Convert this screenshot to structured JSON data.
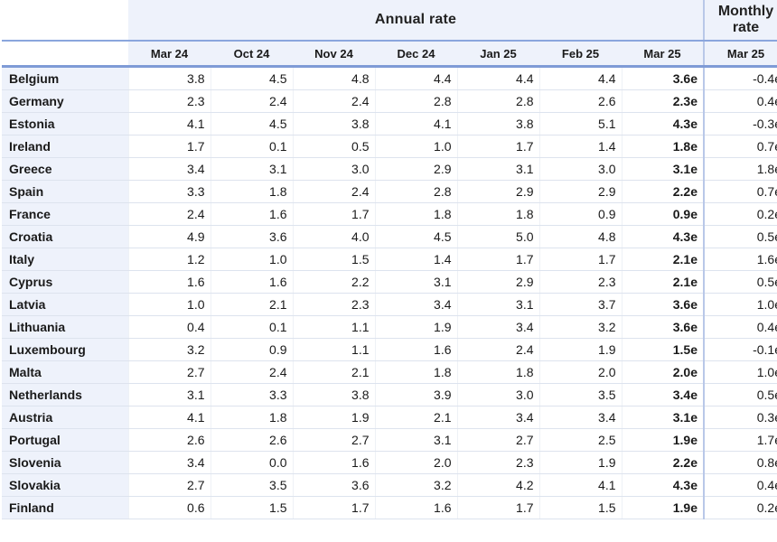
{
  "header": {
    "annual_label": "Annual rate",
    "monthly_label_line1": "Monthly",
    "monthly_label_line2": "rate"
  },
  "columns": [
    "Mar 24",
    "Oct 24",
    "Nov 24",
    "Dec 24",
    "Jan 25",
    "Feb 25",
    "Mar 25",
    "Mar 25"
  ],
  "rows": [
    {
      "country": "Belgium",
      "values": [
        "3.8",
        "4.5",
        "4.8",
        "4.4",
        "4.4",
        "4.4",
        "3.6e",
        "-0.4e"
      ]
    },
    {
      "country": "Germany",
      "values": [
        "2.3",
        "2.4",
        "2.4",
        "2.8",
        "2.8",
        "2.6",
        "2.3e",
        "0.4e"
      ]
    },
    {
      "country": "Estonia",
      "values": [
        "4.1",
        "4.5",
        "3.8",
        "4.1",
        "3.8",
        "5.1",
        "4.3e",
        "-0.3e"
      ]
    },
    {
      "country": "Ireland",
      "values": [
        "1.7",
        "0.1",
        "0.5",
        "1.0",
        "1.7",
        "1.4",
        "1.8e",
        "0.7e"
      ]
    },
    {
      "country": "Greece",
      "values": [
        "3.4",
        "3.1",
        "3.0",
        "2.9",
        "3.1",
        "3.0",
        "3.1e",
        "1.8e"
      ]
    },
    {
      "country": "Spain",
      "values": [
        "3.3",
        "1.8",
        "2.4",
        "2.8",
        "2.9",
        "2.9",
        "2.2e",
        "0.7e"
      ]
    },
    {
      "country": "France",
      "values": [
        "2.4",
        "1.6",
        "1.7",
        "1.8",
        "1.8",
        "0.9",
        "0.9e",
        "0.2e"
      ]
    },
    {
      "country": "Croatia",
      "values": [
        "4.9",
        "3.6",
        "4.0",
        "4.5",
        "5.0",
        "4.8",
        "4.3e",
        "0.5e"
      ]
    },
    {
      "country": "Italy",
      "values": [
        "1.2",
        "1.0",
        "1.5",
        "1.4",
        "1.7",
        "1.7",
        "2.1e",
        "1.6e"
      ]
    },
    {
      "country": "Cyprus",
      "values": [
        "1.6",
        "1.6",
        "2.2",
        "3.1",
        "2.9",
        "2.3",
        "2.1e",
        "0.5e"
      ]
    },
    {
      "country": "Latvia",
      "values": [
        "1.0",
        "2.1",
        "2.3",
        "3.4",
        "3.1",
        "3.7",
        "3.6e",
        "1.0e"
      ]
    },
    {
      "country": "Lithuania",
      "values": [
        "0.4",
        "0.1",
        "1.1",
        "1.9",
        "3.4",
        "3.2",
        "3.6e",
        "0.4e"
      ]
    },
    {
      "country": "Luxembourg",
      "values": [
        "3.2",
        "0.9",
        "1.1",
        "1.6",
        "2.4",
        "1.9",
        "1.5e",
        "-0.1e"
      ]
    },
    {
      "country": "Malta",
      "values": [
        "2.7",
        "2.4",
        "2.1",
        "1.8",
        "1.8",
        "2.0",
        "2.0e",
        "1.0e"
      ]
    },
    {
      "country": "Netherlands",
      "values": [
        "3.1",
        "3.3",
        "3.8",
        "3.9",
        "3.0",
        "3.5",
        "3.4e",
        "0.5e"
      ]
    },
    {
      "country": "Austria",
      "values": [
        "4.1",
        "1.8",
        "1.9",
        "2.1",
        "3.4",
        "3.4",
        "3.1e",
        "0.3e"
      ]
    },
    {
      "country": "Portugal",
      "values": [
        "2.6",
        "2.6",
        "2.7",
        "3.1",
        "2.7",
        "2.5",
        "1.9e",
        "1.7e"
      ]
    },
    {
      "country": "Slovenia",
      "values": [
        "3.4",
        "0.0",
        "1.6",
        "2.0",
        "2.3",
        "1.9",
        "2.2e",
        "0.8e"
      ]
    },
    {
      "country": "Slovakia",
      "values": [
        "2.7",
        "3.5",
        "3.6",
        "3.2",
        "4.2",
        "4.1",
        "4.3e",
        "0.4e"
      ]
    },
    {
      "country": "Finland",
      "values": [
        "0.6",
        "1.5",
        "1.7",
        "1.6",
        "1.7",
        "1.5",
        "1.9e",
        "0.2e"
      ]
    }
  ]
}
